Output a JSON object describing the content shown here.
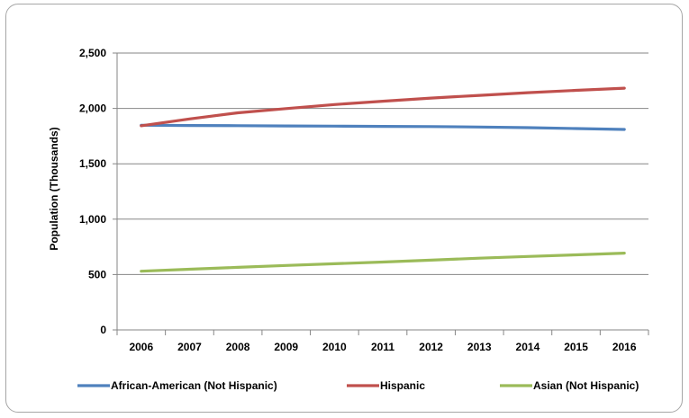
{
  "chart_data": {
    "type": "line",
    "title": "",
    "xlabel": "",
    "ylabel": "Population (Thousands)",
    "ylim": [
      0,
      2500
    ],
    "yticks": [
      0,
      500,
      1000,
      1500,
      2000,
      2500
    ],
    "ytick_labels": [
      "0",
      "500",
      "1,000",
      "1,500",
      "2,000",
      "2,500"
    ],
    "categories": [
      "2006",
      "2007",
      "2008",
      "2009",
      "2010",
      "2011",
      "2012",
      "2013",
      "2014",
      "2015",
      "2016"
    ],
    "grid": true,
    "legend_position": "bottom",
    "series": [
      {
        "name": "African-American (Not Hispanic)",
        "color": "#4f81bd",
        "values": [
          1848,
          1846,
          1844,
          1842,
          1840,
          1838,
          1836,
          1832,
          1826,
          1818,
          1810
        ]
      },
      {
        "name": "Hispanic",
        "color": "#c0504d",
        "values": [
          1843,
          1905,
          1960,
          1998,
          2035,
          2065,
          2093,
          2118,
          2142,
          2163,
          2183
        ]
      },
      {
        "name": "Asian (Not Hispanic)",
        "color": "#9bbb59",
        "values": [
          530,
          548,
          565,
          582,
          597,
          613,
          630,
          648,
          663,
          678,
          693
        ]
      }
    ]
  }
}
